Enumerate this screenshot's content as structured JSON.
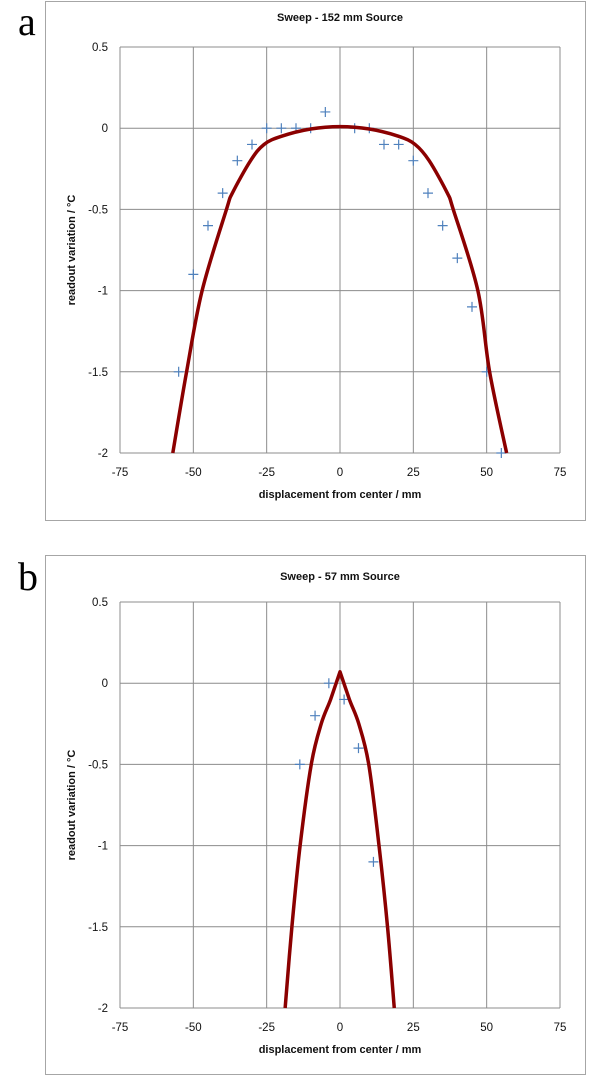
{
  "chart_data": [
    {
      "panel_label": "a",
      "type": "scatter",
      "title": "Sweep - 152 mm Source",
      "xlabel": "displacement from center / mm",
      "ylabel": "readout variation / °C",
      "xlim": [
        -75,
        75
      ],
      "ylim": [
        -2,
        0.5
      ],
      "xticks": [
        "-75",
        "-50",
        "-25",
        "0",
        "25",
        "50",
        "75"
      ],
      "yticks": [
        "0.5",
        "0",
        "-0.5",
        "-1",
        "-1.5",
        "-2"
      ],
      "grid": true,
      "legend": "none",
      "points": {
        "marker": "plus",
        "color": "#4f81bd",
        "x": [
          -55,
          -50,
          -45,
          -40,
          -35,
          -30,
          -25,
          -20,
          -15,
          -10,
          -5,
          5,
          10,
          15,
          20,
          25,
          30,
          35,
          40,
          45,
          50,
          55
        ],
        "y": [
          -1.5,
          -0.9,
          -0.6,
          -0.4,
          -0.2,
          -0.1,
          0,
          0,
          0,
          0,
          0.1,
          0,
          0,
          -0.1,
          -0.1,
          -0.2,
          -0.4,
          -0.6,
          -0.8,
          -1.1,
          -1.5,
          -2
        ]
      },
      "curve": {
        "color": "#8b0000",
        "x": [
          -57,
          -52.3,
          -47,
          -38.7,
          -36.7,
          -30.5,
          -25.9,
          -20,
          -10,
          0,
          10,
          20,
          25.6,
          30.4,
          36.6,
          38.6,
          47,
          51,
          56.8
        ],
        "y": [
          -2,
          -1.5,
          -1,
          -0.5,
          -0.4,
          -0.2,
          -0.1,
          -0.05,
          -0.005,
          0.01,
          -0.005,
          -0.05,
          -0.1,
          -0.2,
          -0.4,
          -0.5,
          -1,
          -1.5,
          -2
        ]
      }
    },
    {
      "panel_label": "b",
      "type": "scatter",
      "title": "Sweep - 57 mm Source",
      "xlabel": "displacement from center / mm",
      "ylabel": "readout variation / °C",
      "xlim": [
        -75,
        75
      ],
      "ylim": [
        -2,
        0.5
      ],
      "xticks": [
        "-75",
        "-50",
        "-25",
        "0",
        "25",
        "50",
        "75"
      ],
      "yticks": [
        "0.5",
        "0",
        "-0.5",
        "-1",
        "-1.5",
        "-2"
      ],
      "grid": true,
      "legend": "none",
      "points": {
        "marker": "plus",
        "color": "#4f81bd",
        "x": [
          -13.7,
          -8.5,
          -3.8,
          1.4,
          6.3,
          11.4
        ],
        "y": [
          -0.5,
          -0.2,
          0,
          -0.1,
          -0.4,
          -1.1
        ]
      },
      "curve": {
        "color": "#8b0000",
        "x": [
          -18.7,
          -16.4,
          -13.6,
          -9.8,
          -6.4,
          -3.2,
          0,
          3.2,
          6.4,
          9.8,
          13.3,
          16.2,
          18.5
        ],
        "y": [
          -2,
          -1.5,
          -1,
          -0.5,
          -0.25,
          -0.1,
          0.07,
          -0.1,
          -0.25,
          -0.5,
          -1,
          -1.5,
          -2
        ]
      }
    }
  ]
}
